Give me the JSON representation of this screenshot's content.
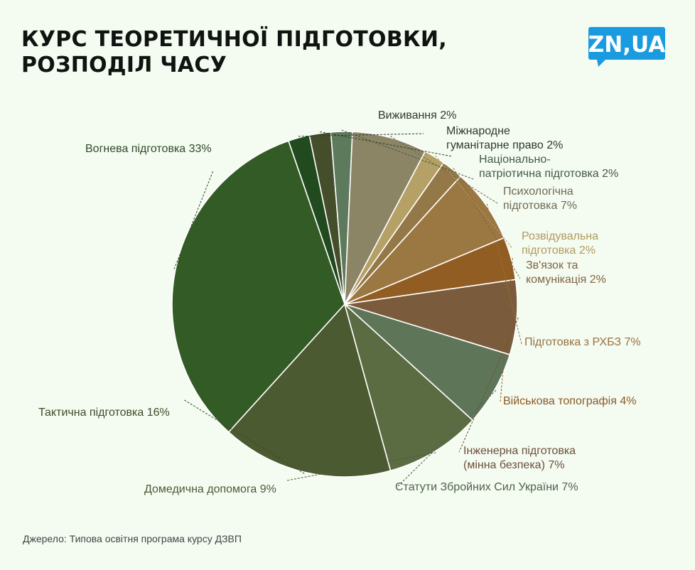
{
  "title_lines": [
    "КУРС ТЕОРЕТИЧНОЇ ПІДГОТОВКИ,",
    "РОЗПОДІЛ ЧАСУ"
  ],
  "logo_text": "ZN,UA",
  "source": "Джерело: Типова освітня програма курсу ДЗВП",
  "colors": {
    "background": "#f4fbf1",
    "logo": "#1a9be0"
  },
  "chart_data": {
    "type": "pie",
    "title": "КУРС ТЕОРЕТИЧНОЇ ПІДГОТОВКИ, РОЗПОДІЛ ЧАСУ",
    "slices": [
      {
        "label": [
          "Виживання 2%"
        ],
        "value": 2,
        "color": "#214a1f",
        "label_color": "#2e3a2e"
      },
      {
        "label": [
          "Міжнародне",
          "гуманітарне право 2%"
        ],
        "value": 2,
        "color": "#454e2a",
        "label_color": "#2e3a2e"
      },
      {
        "label": [
          "Національно-",
          "патріотична підготовка 2%"
        ],
        "value": 2,
        "color": "#5d7a5c",
        "label_color": "#435a44"
      },
      {
        "label": [
          "Психологічна",
          "підготовка 7%"
        ],
        "value": 7,
        "color": "#8b8565",
        "label_color": "#6e6a52"
      },
      {
        "label": [
          "Розвідувальна",
          "підготовка 2%"
        ],
        "value": 2,
        "color": "#b5a066",
        "label_color": "#b09a5c"
      },
      {
        "label": [
          "Зв'язок та",
          "комунікація 2%"
        ],
        "value": 2,
        "color": "#947848",
        "label_color": "#7e6540"
      },
      {
        "label": [
          "Підготовка з РХБЗ 7%"
        ],
        "value": 7,
        "color": "#9b7742",
        "label_color": "#977240"
      },
      {
        "label": [
          "Військова топографія 4%"
        ],
        "value": 4,
        "color": "#925d22",
        "label_color": "#8c5a22"
      },
      {
        "label": [
          "Інженерна підготовка",
          "(мінна безпека) 7%"
        ],
        "value": 7,
        "color": "#7a5c3c",
        "label_color": "#6b5038"
      },
      {
        "label": [
          "Статути Збройних Сил України 7%"
        ],
        "value": 7,
        "color": "#5f7558",
        "label_color": "#4f624a"
      },
      {
        "label": [
          "Домедична допомога 9%"
        ],
        "value": 9,
        "color": "#5b6c43",
        "label_color": "#4c5a38"
      },
      {
        "label": [
          "Тактична підготовка 16%"
        ],
        "value": 16,
        "color": "#4b5a30",
        "label_color": "#3e4a2a"
      },
      {
        "label": [
          "Вогнева підготовка 33%"
        ],
        "value": 33,
        "color": "#335b25",
        "label_color": "#2e4a26"
      }
    ]
  }
}
